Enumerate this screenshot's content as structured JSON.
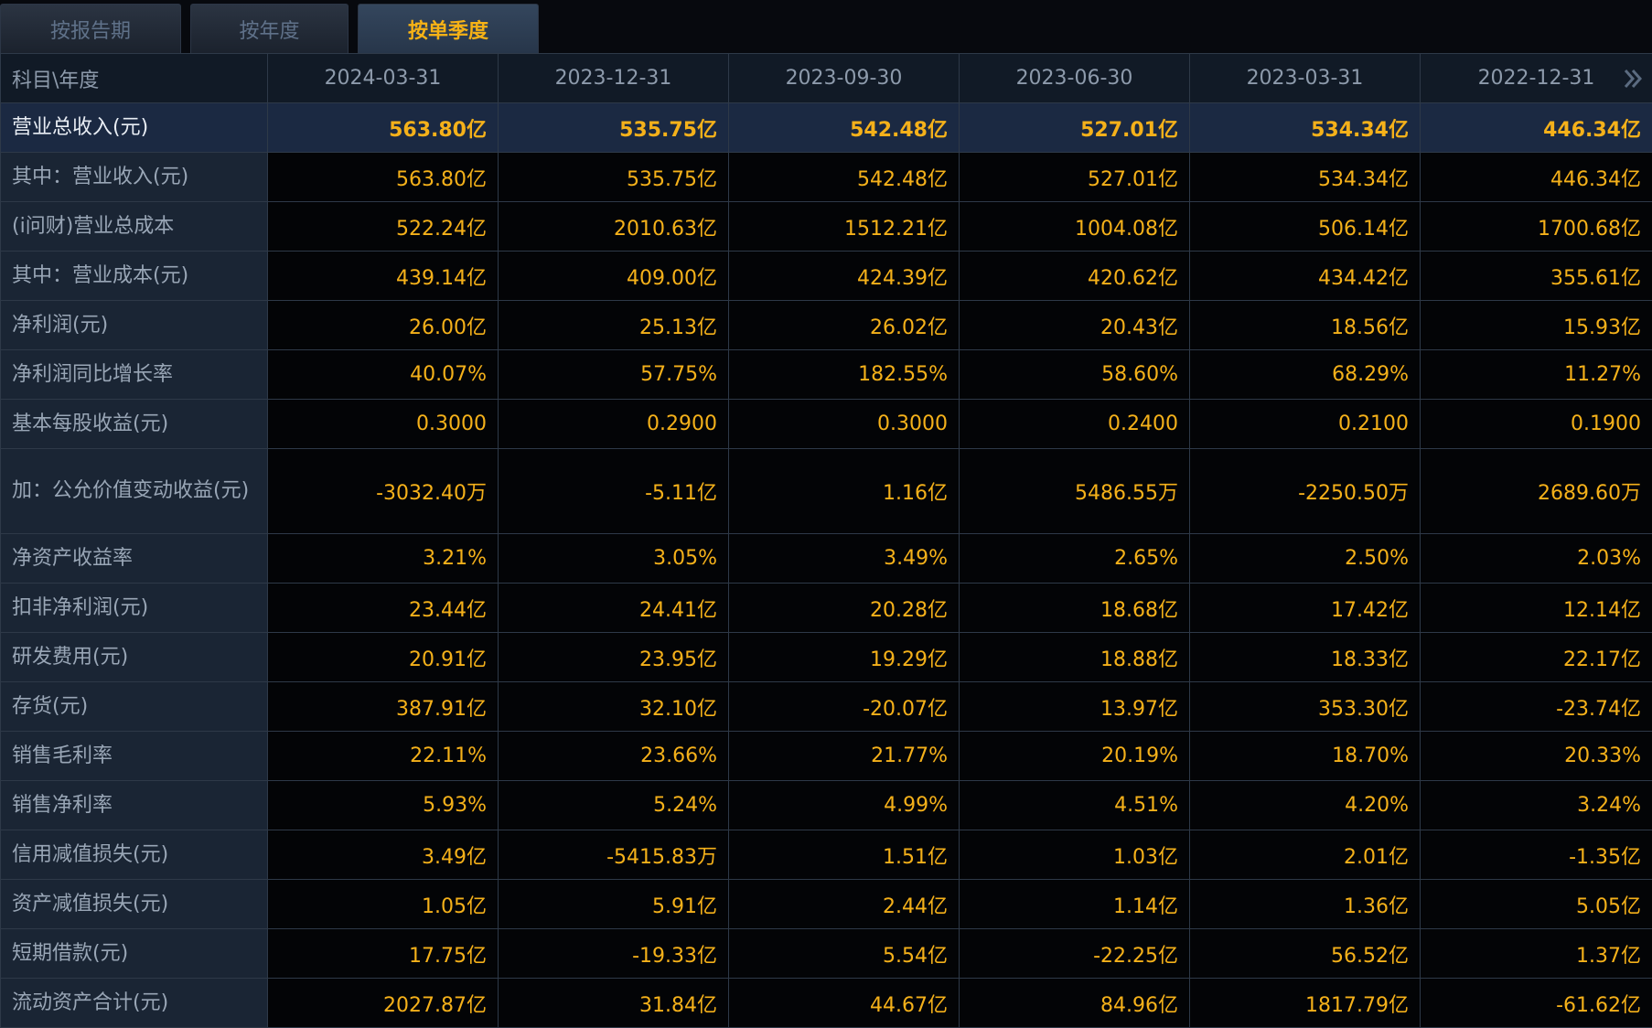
{
  "tabs": [
    {
      "label": "按报告期",
      "active": false
    },
    {
      "label": "按年度",
      "active": false
    },
    {
      "label": "按单季度",
      "active": true
    }
  ],
  "table": {
    "corner_label": "科目\\年度",
    "columns": [
      "2024-03-31",
      "2023-12-31",
      "2023-09-30",
      "2023-06-30",
      "2023-03-31",
      "2022-12-31"
    ],
    "more_icon": "double-chevron-right-icon",
    "rows": [
      {
        "label": "营业总收入(元)",
        "values": [
          "563.80亿",
          "535.75亿",
          "542.48亿",
          "527.01亿",
          "534.34亿",
          "446.34亿"
        ]
      },
      {
        "label": "其中：营业收入(元)",
        "values": [
          "563.80亿",
          "535.75亿",
          "542.48亿",
          "527.01亿",
          "534.34亿",
          "446.34亿"
        ]
      },
      {
        "label": "(i问财)营业总成本",
        "values": [
          "522.24亿",
          "2010.63亿",
          "1512.21亿",
          "1004.08亿",
          "506.14亿",
          "1700.68亿"
        ]
      },
      {
        "label": "其中：营业成本(元)",
        "values": [
          "439.14亿",
          "409.00亿",
          "424.39亿",
          "420.62亿",
          "434.42亿",
          "355.61亿"
        ]
      },
      {
        "label": "净利润(元)",
        "values": [
          "26.00亿",
          "25.13亿",
          "26.02亿",
          "20.43亿",
          "18.56亿",
          "15.93亿"
        ]
      },
      {
        "label": "净利润同比增长率",
        "values": [
          "40.07%",
          "57.75%",
          "182.55%",
          "58.60%",
          "68.29%",
          "11.27%"
        ]
      },
      {
        "label": "基本每股收益(元)",
        "values": [
          "0.3000",
          "0.2900",
          "0.3000",
          "0.2400",
          "0.2100",
          "0.1900"
        ]
      },
      {
        "label": "加：公允价值变动收益(元)",
        "values": [
          "-3032.40万",
          "-5.11亿",
          "1.16亿",
          "5486.55万",
          "-2250.50万",
          "2689.60万"
        ]
      },
      {
        "label": "净资产收益率",
        "values": [
          "3.21%",
          "3.05%",
          "3.49%",
          "2.65%",
          "2.50%",
          "2.03%"
        ]
      },
      {
        "label": "扣非净利润(元)",
        "values": [
          "23.44亿",
          "24.41亿",
          "20.28亿",
          "18.68亿",
          "17.42亿",
          "12.14亿"
        ]
      },
      {
        "label": "研发费用(元)",
        "values": [
          "20.91亿",
          "23.95亿",
          "19.29亿",
          "18.88亿",
          "18.33亿",
          "22.17亿"
        ]
      },
      {
        "label": "存货(元)",
        "values": [
          "387.91亿",
          "32.10亿",
          "-20.07亿",
          "13.97亿",
          "353.30亿",
          "-23.74亿"
        ]
      },
      {
        "label": "销售毛利率",
        "values": [
          "22.11%",
          "23.66%",
          "21.77%",
          "20.19%",
          "18.70%",
          "20.33%"
        ]
      },
      {
        "label": "销售净利率",
        "values": [
          "5.93%",
          "5.24%",
          "4.99%",
          "4.51%",
          "4.20%",
          "3.24%"
        ]
      },
      {
        "label": "信用减值损失(元)",
        "values": [
          "3.49亿",
          "-5415.83万",
          "1.51亿",
          "1.03亿",
          "2.01亿",
          "-1.35亿"
        ]
      },
      {
        "label": "资产减值损失(元)",
        "values": [
          "1.05亿",
          "5.91亿",
          "2.44亿",
          "1.14亿",
          "1.36亿",
          "5.05亿"
        ]
      },
      {
        "label": "短期借款(元)",
        "values": [
          "17.75亿",
          "-19.33亿",
          "5.54亿",
          "-22.25亿",
          "56.52亿",
          "1.37亿"
        ]
      },
      {
        "label": "流动资产合计(元)",
        "values": [
          "2027.87亿",
          "31.84亿",
          "44.67亿",
          "84.96亿",
          "1817.79亿",
          "-61.62亿"
        ]
      }
    ]
  },
  "colors": {
    "accent": "#f5b11a",
    "background": "#030406",
    "label_bg": "#1a2534",
    "header_bg": "#111a26",
    "highlight_row_bg": "#1b2942",
    "border": "#2e3948"
  }
}
